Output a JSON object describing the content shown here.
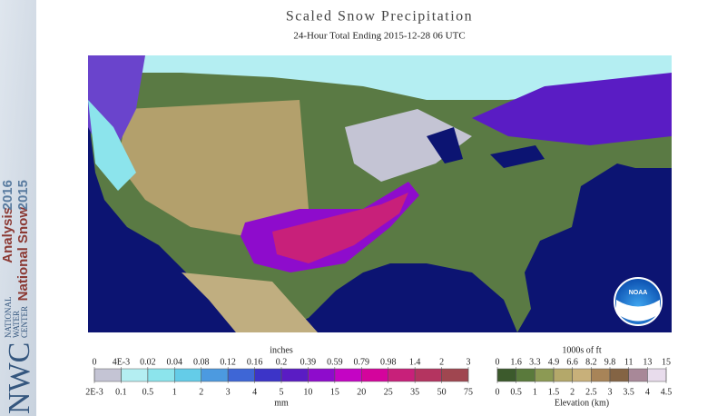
{
  "header": {
    "title": "Scaled Snow Precipitation",
    "subtitle": "24-Hour Total Ending 2015-12-28 06 UTC"
  },
  "sidebar": {
    "line1": "National Snow",
    "line2": "Analysis",
    "year1": "2015",
    "year2": "2016",
    "logo": "NWC",
    "org1": "NATIONAL",
    "org2": "WATER",
    "org3": "CENTER"
  },
  "map": {
    "logo": "NOAA"
  },
  "snow_legend": {
    "top_title": "inches",
    "bottom_title": "mm",
    "top_labels": [
      "0",
      "4E-3",
      "0.02",
      "0.04",
      "0.08",
      "0.12",
      "0.16",
      "0.2",
      "0.39",
      "0.59",
      "0.79",
      "0.98",
      "1.4",
      "2",
      "3"
    ],
    "bottom_labels": [
      "2E-3",
      "0.1",
      "0.5",
      "1",
      "2",
      "3",
      "4",
      "5",
      "10",
      "15",
      "20",
      "25",
      "35",
      "50",
      "75"
    ],
    "colors": [
      "#c4c4d4",
      "#b4eef2",
      "#8ce4ec",
      "#64cce8",
      "#4c9ae0",
      "#3e66d6",
      "#3c34c8",
      "#5a1cc4",
      "#8e0ccc",
      "#c404c4",
      "#d4049c",
      "#c8207a",
      "#b43460",
      "#a04650"
    ]
  },
  "elevation_legend": {
    "top_title": "1000s of ft",
    "bottom_title": "Elevation (km)",
    "top_labels": [
      "0",
      "1.6",
      "3.3",
      "4.9",
      "6.6",
      "8.2",
      "9.8",
      "11",
      "13",
      "15"
    ],
    "bottom_labels": [
      "0",
      "0.5",
      "1",
      "1.5",
      "2",
      "2.5",
      "3",
      "3.5",
      "4",
      "4.5"
    ],
    "colors": [
      "#3c5a2c",
      "#5a7a3c",
      "#8c9a54",
      "#b4a86a",
      "#c8b07a",
      "#a88458",
      "#846444",
      "#a88898",
      "#e8dcec"
    ]
  }
}
